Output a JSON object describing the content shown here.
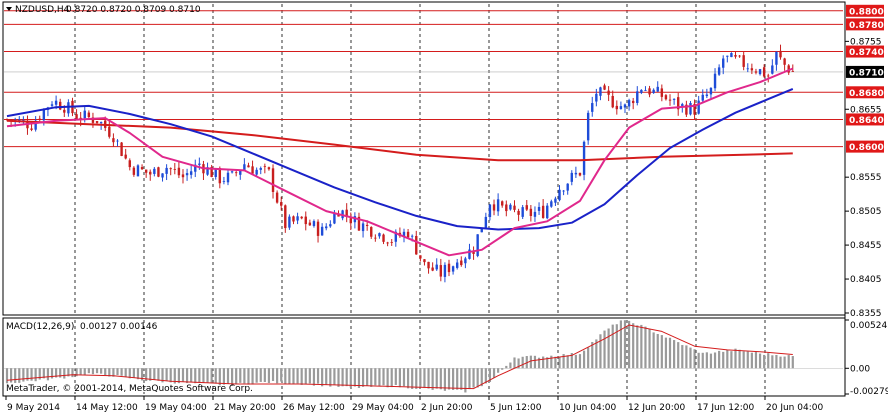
{
  "chart_header": {
    "symbol_tf": "NZDUSD,H4",
    "ohlc": "0.8720 0.8720 0.8709 0.8710"
  },
  "macd_header": {
    "name": "MACD(12,26,9)",
    "values": "0.00127 0.00146"
  },
  "copyright": "MetaTrader, © 2001-2014, MetaQuotes Software Corp.",
  "colors": {
    "bull_candle": "#1e4cd8",
    "bear_candle": "#c81e1e",
    "ma_fast": "#e0288c",
    "ma_mid": "#1a22c8",
    "ma_slow": "#d41c1c",
    "level_line": "#d41c1c",
    "macd_hist": "#9a9a9a",
    "macd_signal": "#d41c1c",
    "price_tag_red": "#e01818",
    "price_tag_current": "#000000"
  },
  "chart_data": [
    {
      "type": "candlestick",
      "symbol": "NZDUSD",
      "timeframe": "H4",
      "ylim": [
        0.8355,
        0.881
      ],
      "y_ticks": [
        "0.8755",
        "0.8655",
        "0.8555",
        "0.8505",
        "0.8455",
        "0.8405",
        "0.8355"
      ],
      "x_tick_labels": [
        "9 May 2014",
        "14 May 12:00",
        "19 May 04:00",
        "21 May 20:00",
        "26 May 12:00",
        "29 May 04:00",
        "2 Jun 20:00",
        "5 Jun 12:00",
        "10 Jun 04:00",
        "12 Jun 20:00",
        "17 Jun 12:00",
        "20 Jun 04:00"
      ],
      "horizontal_levels": [
        {
          "value": 0.88,
          "label": "0.8800"
        },
        {
          "value": 0.878,
          "label": "0.8780"
        },
        {
          "value": 0.874,
          "label": "0.8740"
        },
        {
          "value": 0.868,
          "label": "0.8680"
        },
        {
          "value": 0.864,
          "label": "0.8640"
        },
        {
          "value": 0.86,
          "label": "0.8600"
        }
      ],
      "current_price": {
        "value": 0.871,
        "label": "0.8710"
      },
      "close_path": [
        [
          0,
          0.864
        ],
        [
          6,
          0.8633
        ],
        [
          11,
          0.8668
        ],
        [
          14,
          0.866
        ],
        [
          17,
          0.8646
        ],
        [
          22,
          0.864
        ],
        [
          26,
          0.8617
        ],
        [
          30,
          0.857
        ],
        [
          35,
          0.856
        ],
        [
          39,
          0.857
        ],
        [
          43,
          0.8555
        ],
        [
          47,
          0.8575
        ],
        [
          52,
          0.8553
        ],
        [
          55,
          0.8555
        ],
        [
          58,
          0.8575
        ],
        [
          61,
          0.8565
        ],
        [
          64,
          0.856
        ],
        [
          68,
          0.8485
        ],
        [
          72,
          0.8492
        ],
        [
          77,
          0.8475
        ],
        [
          81,
          0.8508
        ],
        [
          85,
          0.849
        ],
        [
          90,
          0.8475
        ],
        [
          94,
          0.8463
        ],
        [
          98,
          0.8475
        ],
        [
          102,
          0.8425
        ],
        [
          106,
          0.8413
        ],
        [
          110,
          0.8432
        ],
        [
          114,
          0.845
        ],
        [
          118,
          0.852
        ],
        [
          122,
          0.8505
        ],
        [
          127,
          0.85
        ],
        [
          131,
          0.8505
        ],
        [
          135,
          0.854
        ],
        [
          140,
          0.8563
        ],
        [
          142,
          0.8645
        ],
        [
          144,
          0.868
        ],
        [
          147,
          0.867
        ],
        [
          151,
          0.8657
        ],
        [
          155,
          0.8688
        ],
        [
          160,
          0.8675
        ],
        [
          164,
          0.866
        ],
        [
          168,
          0.8655
        ],
        [
          172,
          0.8682
        ],
        [
          175,
          0.873
        ],
        [
          178,
          0.8726
        ],
        [
          182,
          0.8718
        ],
        [
          186,
          0.8705
        ],
        [
          188,
          0.8735
        ],
        [
          190,
          0.872
        ],
        [
          192,
          0.871
        ]
      ],
      "ma_fast_path": [
        [
          0,
          0.863
        ],
        [
          12,
          0.8638
        ],
        [
          24,
          0.8642
        ],
        [
          30,
          0.862
        ],
        [
          38,
          0.8585
        ],
        [
          48,
          0.8568
        ],
        [
          58,
          0.8565
        ],
        [
          68,
          0.8535
        ],
        [
          78,
          0.8505
        ],
        [
          88,
          0.849
        ],
        [
          98,
          0.8465
        ],
        [
          108,
          0.844
        ],
        [
          116,
          0.8448
        ],
        [
          124,
          0.848
        ],
        [
          132,
          0.849
        ],
        [
          140,
          0.852
        ],
        [
          146,
          0.858
        ],
        [
          152,
          0.8628
        ],
        [
          160,
          0.8656
        ],
        [
          168,
          0.866
        ],
        [
          176,
          0.868
        ],
        [
          184,
          0.8695
        ],
        [
          192,
          0.8715
        ]
      ],
      "ma_mid_path": [
        [
          0,
          0.8645
        ],
        [
          12,
          0.8658
        ],
        [
          20,
          0.866
        ],
        [
          30,
          0.8648
        ],
        [
          40,
          0.8633
        ],
        [
          50,
          0.8615
        ],
        [
          60,
          0.859
        ],
        [
          70,
          0.8565
        ],
        [
          80,
          0.854
        ],
        [
          90,
          0.8518
        ],
        [
          100,
          0.8498
        ],
        [
          110,
          0.8483
        ],
        [
          120,
          0.8478
        ],
        [
          130,
          0.848
        ],
        [
          138,
          0.8488
        ],
        [
          146,
          0.8515
        ],
        [
          154,
          0.8558
        ],
        [
          162,
          0.8598
        ],
        [
          170,
          0.8625
        ],
        [
          178,
          0.865
        ],
        [
          186,
          0.867
        ],
        [
          192,
          0.8685
        ]
      ],
      "ma_slow_path": [
        [
          0,
          0.8638
        ],
        [
          20,
          0.8633
        ],
        [
          40,
          0.8628
        ],
        [
          60,
          0.8617
        ],
        [
          80,
          0.8603
        ],
        [
          100,
          0.8588
        ],
        [
          120,
          0.858
        ],
        [
          140,
          0.858
        ],
        [
          160,
          0.8585
        ],
        [
          180,
          0.8588
        ],
        [
          192,
          0.859
        ]
      ]
    },
    {
      "type": "bar",
      "name": "MACD(12,26,9)",
      "ylim": [
        -0.00279,
        0.00524
      ],
      "y_ticks": [
        "0.00524",
        "0.00",
        "-0.00279"
      ],
      "histogram_path": [
        [
          0,
          -0.0016
        ],
        [
          12,
          -0.0011
        ],
        [
          20,
          -0.0006
        ],
        [
          26,
          -0.0008
        ],
        [
          34,
          -0.0013
        ],
        [
          44,
          -0.0016
        ],
        [
          54,
          -0.0018
        ],
        [
          64,
          -0.0015
        ],
        [
          74,
          -0.0017
        ],
        [
          84,
          -0.0021
        ],
        [
          94,
          -0.0019
        ],
        [
          104,
          -0.0023
        ],
        [
          112,
          -0.0025
        ],
        [
          118,
          -0.0015
        ],
        [
          124,
          0.0012
        ],
        [
          132,
          0.0013
        ],
        [
          140,
          0.0016
        ],
        [
          146,
          0.004
        ],
        [
          150,
          0.0052
        ],
        [
          154,
          0.0048
        ],
        [
          162,
          0.0032
        ],
        [
          170,
          0.0016
        ],
        [
          178,
          0.002
        ],
        [
          184,
          0.0016
        ],
        [
          192,
          0.0013
        ]
      ],
      "signal_path": [
        [
          0,
          -0.0013
        ],
        [
          16,
          -0.0007
        ],
        [
          26,
          -0.0008
        ],
        [
          40,
          -0.0014
        ],
        [
          56,
          -0.0017
        ],
        [
          72,
          -0.0017
        ],
        [
          88,
          -0.0019
        ],
        [
          104,
          -0.0021
        ],
        [
          114,
          -0.0022
        ],
        [
          120,
          -0.0008
        ],
        [
          128,
          0.0008
        ],
        [
          138,
          0.0014
        ],
        [
          146,
          0.0032
        ],
        [
          152,
          0.0047
        ],
        [
          160,
          0.004
        ],
        [
          168,
          0.0024
        ],
        [
          176,
          0.002
        ],
        [
          184,
          0.0018
        ],
        [
          192,
          0.0015
        ]
      ]
    }
  ]
}
